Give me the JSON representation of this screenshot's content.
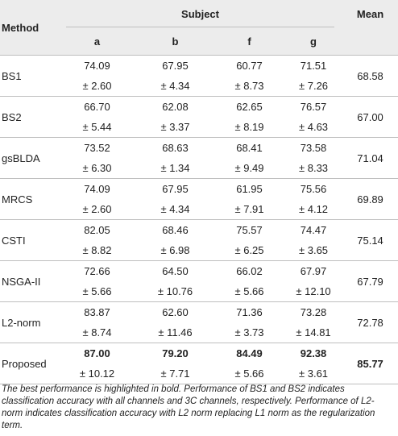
{
  "header": {
    "method": "Method",
    "subject": "Subject",
    "mean": "Mean",
    "subjects": [
      "a",
      "b",
      "f",
      "g"
    ]
  },
  "rows": [
    {
      "method": "BS1",
      "vals": [
        "74.09",
        "67.95",
        "60.77",
        "71.51"
      ],
      "stds": [
        "± 2.60",
        "± 4.34",
        "± 8.73",
        "± 7.26"
      ],
      "mean": "68.58",
      "bold": false
    },
    {
      "method": "BS2",
      "vals": [
        "66.70",
        "62.08",
        "62.65",
        "76.57"
      ],
      "stds": [
        "± 5.44",
        "± 3.37",
        "± 8.19",
        "± 4.63"
      ],
      "mean": "67.00",
      "bold": false
    },
    {
      "method": "gsBLDA",
      "vals": [
        "73.52",
        "68.63",
        "68.41",
        "73.58"
      ],
      "stds": [
        "± 6.30",
        "± 1.34",
        "± 9.49",
        "± 8.33"
      ],
      "mean": "71.04",
      "bold": false
    },
    {
      "method": "MRCS",
      "vals": [
        "74.09",
        "67.95",
        "61.95",
        "75.56"
      ],
      "stds": [
        "± 2.60",
        "± 4.34",
        "± 7.91",
        "± 4.12"
      ],
      "mean": "69.89",
      "bold": false
    },
    {
      "method": "CSTI",
      "vals": [
        "82.05",
        "68.46",
        "75.57",
        "74.47"
      ],
      "stds": [
        "± 8.82",
        "± 6.98",
        "± 6.25",
        "± 3.65"
      ],
      "mean": "75.14",
      "bold": false
    },
    {
      "method": "NSGA-II",
      "vals": [
        "72.66",
        "64.50",
        "66.02",
        "67.97"
      ],
      "stds": [
        "± 5.66",
        "± 10.76",
        "± 5.66",
        "± 12.10"
      ],
      "mean": "67.79",
      "bold": false
    },
    {
      "method": "L2-norm",
      "vals": [
        "83.87",
        "62.60",
        "71.36",
        "73.28"
      ],
      "stds": [
        "± 8.74",
        "± 11.46",
        "± 3.73",
        "± 14.81"
      ],
      "mean": "72.78",
      "bold": false
    },
    {
      "method": "Proposed",
      "vals": [
        "87.00",
        "79.20",
        "84.49",
        "92.38"
      ],
      "stds": [
        "± 10.12",
        "± 7.71",
        "± 5.66",
        "± 3.61"
      ],
      "mean": "85.77",
      "bold": true
    }
  ],
  "footnote": "The best performance is highlighted in bold. Performance of BS1 and BS2 indicates classification accuracy with all channels and 3C channels, respectively. Performance of L2-norm indicates classification accuracy with L2 norm replacing L1 norm as the regularization term."
}
